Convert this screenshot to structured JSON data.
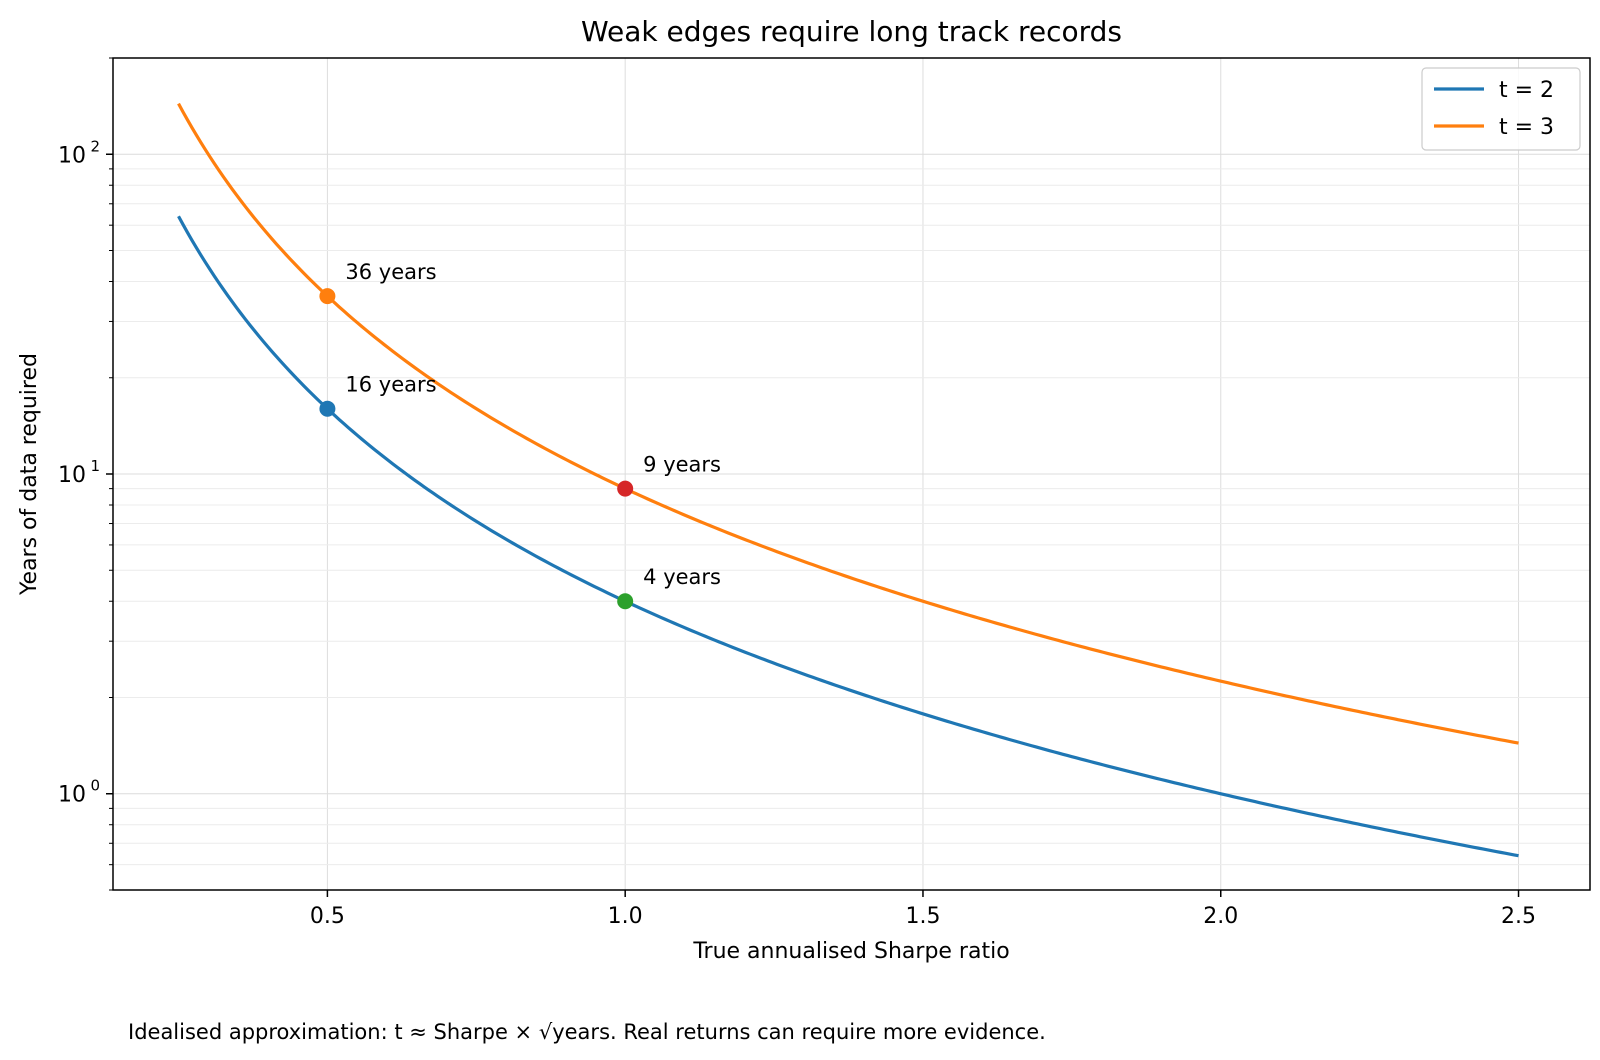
{
  "chart_data": {
    "type": "line",
    "title": "Weak edges require long track records",
    "xlabel": "True annualised Sharpe ratio",
    "ylabel": "Years of data required",
    "yscale": "log",
    "xlim": [
      0.14,
      2.62
    ],
    "ylim": [
      0.5,
      200
    ],
    "x_ticks": [
      "0.5",
      "1.0",
      "1.5",
      "2.0",
      "2.5"
    ],
    "y_tick_values": [
      1,
      10,
      100
    ],
    "y_tick_labels": [
      {
        "base": "10",
        "exp": "0"
      },
      {
        "base": "10",
        "exp": "1"
      },
      {
        "base": "10",
        "exp": "2"
      }
    ],
    "grid": true,
    "legend_position": "top-right",
    "x_range": [
      0.25,
      2.5
    ],
    "series": [
      {
        "name": "t = 2",
        "t": 2,
        "color": "#1f77b4",
        "formula": "years = (t / Sharpe)^2"
      },
      {
        "name": "t = 3",
        "t": 3,
        "color": "#ff7f0e",
        "formula": "years = (t / Sharpe)^2"
      }
    ],
    "markers": [
      {
        "series": "t = 3",
        "x": 0.5,
        "y": 36,
        "color": "#ff7f0e",
        "label": "36 years"
      },
      {
        "series": "t = 2",
        "x": 0.5,
        "y": 16,
        "color": "#1f77b4",
        "label": "16 years"
      },
      {
        "series": "t = 3",
        "x": 1.0,
        "y": 9,
        "color": "#d62728",
        "label": "9 years"
      },
      {
        "series": "t = 2",
        "x": 1.0,
        "y": 4,
        "color": "#2ca02c",
        "label": "4 years"
      }
    ]
  },
  "caption": "Idealised approximation: t ≈ Sharpe × √years. Real returns can require more evidence."
}
